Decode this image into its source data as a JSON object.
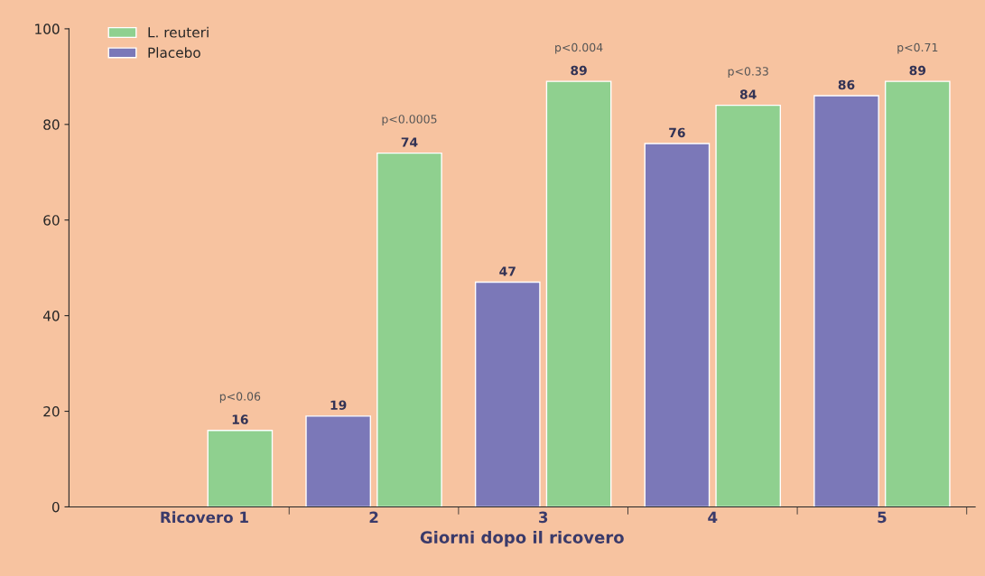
{
  "chart_data": {
    "type": "bar",
    "xlabel": "Giorni dopo il ricovero",
    "categories": [
      "Ricovero 1",
      "2",
      "3",
      "4",
      "5"
    ],
    "series": [
      {
        "name": "L. reuteri",
        "color": "#8fd08f",
        "values": [
          16,
          74,
          89,
          84,
          89
        ]
      },
      {
        "name": "Placebo",
        "color": "#7b78b8",
        "values": [
          null,
          19,
          47,
          76,
          86
        ]
      }
    ],
    "ylim": [
      0,
      100
    ],
    "yticks": [
      0,
      20,
      40,
      60,
      80,
      100
    ],
    "data_labels": true,
    "grid": false,
    "legend": "top left",
    "annotations": [
      "p<0.06",
      "p<0.0005",
      "p<0.004",
      "p<0.33",
      "p<0.71"
    ]
  }
}
